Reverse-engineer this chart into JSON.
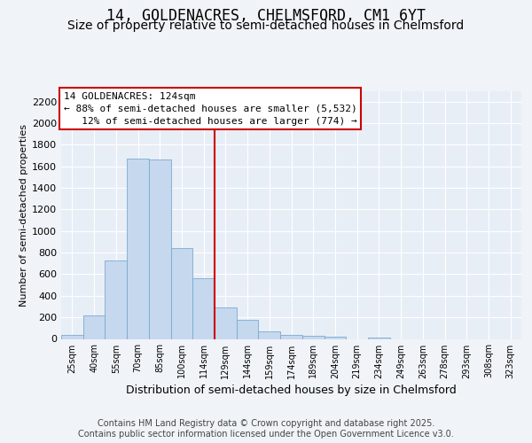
{
  "title": "14, GOLDENACRES, CHELMSFORD, CM1 6YT",
  "subtitle": "Size of property relative to semi-detached houses in Chelmsford",
  "xlabel": "Distribution of semi-detached houses by size in Chelmsford",
  "ylabel": "Number of semi-detached properties",
  "categories": [
    "25sqm",
    "40sqm",
    "55sqm",
    "70sqm",
    "85sqm",
    "100sqm",
    "114sqm",
    "129sqm",
    "144sqm",
    "159sqm",
    "174sqm",
    "189sqm",
    "204sqm",
    "219sqm",
    "234sqm",
    "249sqm",
    "263sqm",
    "278sqm",
    "293sqm",
    "308sqm",
    "323sqm"
  ],
  "values": [
    40,
    220,
    730,
    1670,
    1660,
    840,
    560,
    290,
    180,
    70,
    40,
    25,
    20,
    0,
    15,
    0,
    0,
    0,
    0,
    0,
    0
  ],
  "bar_color": "#c5d8ee",
  "bar_edge_color": "#7aaad0",
  "vline_x": 6.5,
  "vline_color": "#cc0000",
  "annot_line1": "14 GOLDENACRES: 124sqm",
  "annot_line2": "← 88% of semi-detached houses are smaller (5,532)",
  "annot_line3": "   12% of semi-detached houses are larger (774) →",
  "annot_box_fc": "#ffffff",
  "annot_box_ec": "#cc0000",
  "ylim": [
    0,
    2300
  ],
  "yticks": [
    0,
    200,
    400,
    600,
    800,
    1000,
    1200,
    1400,
    1600,
    1800,
    2000,
    2200
  ],
  "bg_color": "#f0f4f8",
  "plot_bg": "#e8eef6",
  "grid_color": "#ffffff",
  "footnote": "Contains HM Land Registry data © Crown copyright and database right 2025.\nContains public sector information licensed under the Open Government Licence v3.0.",
  "title_fontsize": 12,
  "subtitle_fontsize": 10,
  "annot_fontsize": 8,
  "ylabel_fontsize": 8,
  "xlabel_fontsize": 9,
  "xtick_fontsize": 7,
  "ytick_fontsize": 8,
  "footnote_fontsize": 7
}
